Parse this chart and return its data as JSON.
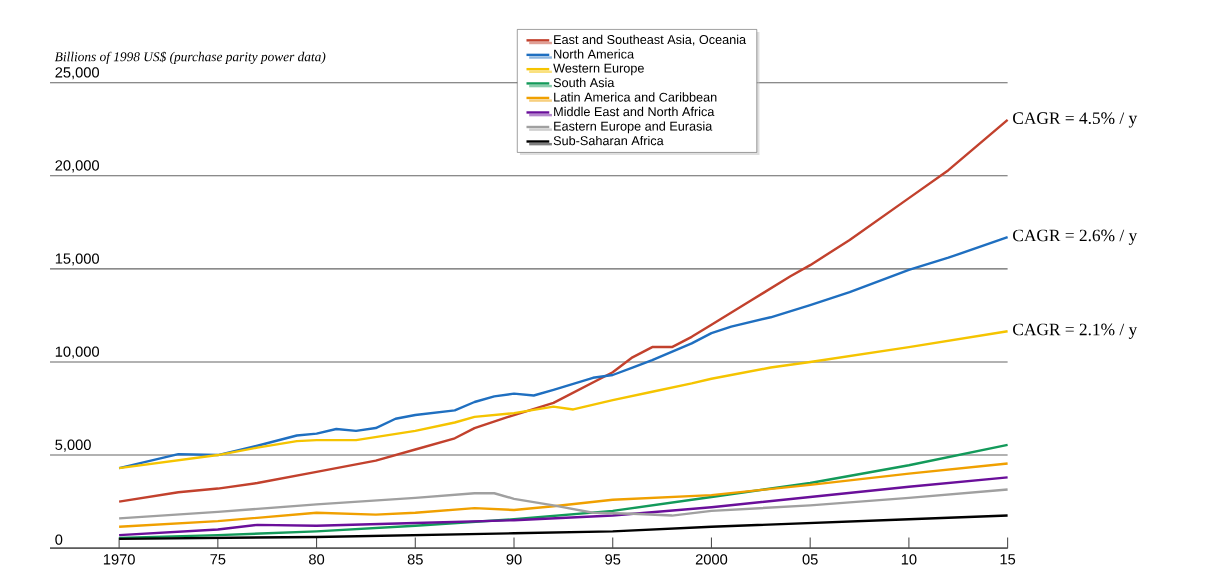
{
  "chart_data": {
    "type": "line",
    "ylabel": "Billions of 1998 US$ (purchase parity power data)",
    "xlim": [
      1966.5,
      2015
    ],
    "xticks": [
      {
        "value": 1970,
        "label": "1970"
      },
      {
        "value": 1975,
        "label": "75"
      },
      {
        "value": 1980,
        "label": "80"
      },
      {
        "value": 1985,
        "label": "85"
      },
      {
        "value": 1990,
        "label": "90"
      },
      {
        "value": 1995,
        "label": "95"
      },
      {
        "value": 2000,
        "label": "2000"
      },
      {
        "value": 2005,
        "label": "05"
      },
      {
        "value": 2010,
        "label": "10"
      },
      {
        "value": 2015,
        "label": "15"
      }
    ],
    "ylim": [
      0,
      25000
    ],
    "yticks": [
      {
        "value": 0,
        "label": "0"
      },
      {
        "value": 5000,
        "label": "5,000"
      },
      {
        "value": 10000,
        "label": "10,000"
      },
      {
        "value": 15000,
        "label": "15,000"
      },
      {
        "value": 20000,
        "label": "20,000"
      },
      {
        "value": 25000,
        "label": "25,000"
      }
    ],
    "grid": "y",
    "legend": "top",
    "marker": "none",
    "line_style": "solid",
    "series": [
      {
        "name": "East and Southeast Asia, Oceania",
        "color": "#c2412d",
        "x": [
          1970,
          1973,
          1975,
          1977,
          1980,
          1983,
          1985,
          1987,
          1988,
          1990,
          1992,
          1994,
          1995,
          1996,
          1997,
          1998,
          1999,
          2000,
          2002,
          2004,
          2005,
          2007,
          2010,
          2012,
          2015
        ],
        "values": [
          2500,
          3000,
          3200,
          3500,
          4100,
          4700,
          5300,
          5900,
          6450,
          7150,
          7800,
          8900,
          9450,
          10250,
          10800,
          10800,
          11350,
          12000,
          13300,
          14600,
          15200,
          16550,
          18800,
          20300,
          23000
        ]
      },
      {
        "name": "North America",
        "color": "#1f6fc0",
        "x": [
          1970,
          1973,
          1975,
          1977,
          1979,
          1980,
          1981,
          1982,
          1983,
          1984,
          1985,
          1987,
          1988,
          1989,
          1990,
          1991,
          1992,
          1994,
          1995,
          1996,
          1997,
          1998,
          1999,
          2000,
          2001,
          2003,
          2005,
          2007,
          2010,
          2012,
          2015
        ],
        "values": [
          4300,
          5050,
          5000,
          5500,
          6050,
          6150,
          6400,
          6300,
          6450,
          6950,
          7150,
          7400,
          7850,
          8150,
          8300,
          8200,
          8500,
          9150,
          9300,
          9700,
          10100,
          10550,
          11000,
          11550,
          11900,
          12400,
          13050,
          13750,
          14950,
          15600,
          16700
        ]
      },
      {
        "name": "Western Europe",
        "color": "#f5c400",
        "x": [
          1970,
          1975,
          1977,
          1979,
          1980,
          1982,
          1985,
          1987,
          1988,
          1990,
          1992,
          1993,
          1995,
          1997,
          1999,
          2000,
          2003,
          2005,
          2010,
          2015
        ],
        "values": [
          4300,
          5000,
          5400,
          5750,
          5800,
          5800,
          6300,
          6750,
          7050,
          7250,
          7600,
          7450,
          7950,
          8400,
          8850,
          9100,
          9700,
          10000,
          10800,
          11650
        ]
      },
      {
        "name": "South Asia",
        "color": "#139a5a",
        "x": [
          1970,
          1975,
          1980,
          1985,
          1990,
          1995,
          2000,
          2005,
          2010,
          2015
        ],
        "values": [
          550,
          700,
          900,
          1200,
          1550,
          2000,
          2750,
          3500,
          4450,
          5550
        ]
      },
      {
        "name": "Latin America and Caribbean",
        "color": "#f0a000",
        "x": [
          1970,
          1975,
          1980,
          1983,
          1985,
          1988,
          1990,
          1992,
          1995,
          2000,
          2005,
          2010,
          2015
        ],
        "values": [
          1150,
          1450,
          1900,
          1800,
          1900,
          2150,
          2050,
          2250,
          2600,
          2850,
          3400,
          4000,
          4550
        ]
      },
      {
        "name": "Middle East and North Africa",
        "color": "#6a0f9a",
        "x": [
          1970,
          1975,
          1977,
          1980,
          1985,
          1990,
          1995,
          2000,
          2005,
          2010,
          2015
        ],
        "values": [
          700,
          1000,
          1250,
          1200,
          1350,
          1500,
          1750,
          2200,
          2750,
          3300,
          3800
        ]
      },
      {
        "name": "Eastern Europe and Eurasia",
        "color": "#a0a0a0",
        "x": [
          1970,
          1975,
          1980,
          1985,
          1988,
          1989,
          1990,
          1992,
          1994,
          1996,
          1998,
          2000,
          2005,
          2010,
          2015
        ],
        "values": [
          1600,
          1950,
          2350,
          2700,
          2950,
          2950,
          2650,
          2300,
          1900,
          1850,
          1750,
          2000,
          2300,
          2700,
          3150
        ]
      },
      {
        "name": "Sub-Saharan Africa",
        "color": "#000000",
        "x": [
          1970,
          1980,
          1990,
          1995,
          2000,
          2005,
          2010,
          2015
        ],
        "values": [
          500,
          600,
          800,
          900,
          1150,
          1350,
          1550,
          1750
        ]
      }
    ],
    "annotations": [
      "CAGR = 4.5% / y",
      "CAGR = 2.6% / y",
      "CAGR = 2.1% / y"
    ]
  }
}
